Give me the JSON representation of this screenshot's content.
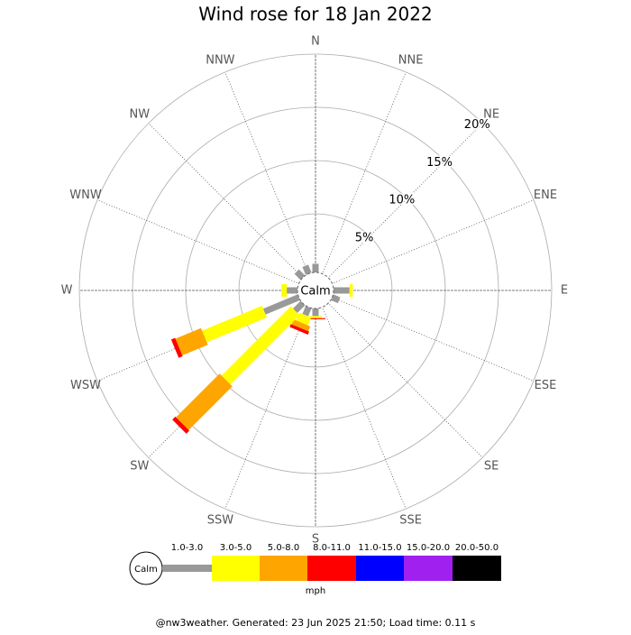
{
  "chart_data": {
    "type": "wind_rose",
    "title": "Wind rose for 18 Jan 2022",
    "categories": [
      "N",
      "NNE",
      "NE",
      "ENE",
      "E",
      "ESE",
      "SE",
      "SSE",
      "S",
      "SSW",
      "SW",
      "WSW",
      "W",
      "WNW",
      "NW",
      "NNW"
    ],
    "calm_label": "Calm",
    "rlim": [
      0,
      20
    ],
    "rticks": [
      {
        "value": 5,
        "label": "5%"
      },
      {
        "value": 10,
        "label": "10%"
      },
      {
        "value": 15,
        "label": "15%"
      },
      {
        "value": 20,
        "label": "20%"
      }
    ],
    "series": [
      {
        "name": "1.0-3.0",
        "color": "#999999",
        "values": [
          0.3,
          0,
          0,
          0,
          1.0,
          0.2,
          0,
          0,
          0.2,
          0.3,
          0.5,
          3.0,
          0.5,
          0,
          0.3,
          0.3
        ]
      },
      {
        "name": "3.0-5.0",
        "color": "#ffff00",
        "values": [
          0,
          0,
          0,
          0,
          0.3,
          0,
          0,
          0,
          0.2,
          0.8,
          9.2,
          6.1,
          0.5,
          0,
          0,
          0
        ]
      },
      {
        "name": "5.0-8.0",
        "color": "#ffa500",
        "values": [
          0,
          0,
          0,
          0,
          0,
          0,
          0,
          0,
          0,
          0.5,
          5.8,
          2.6,
          0,
          0,
          0,
          0
        ]
      },
      {
        "name": "8.0-11.0",
        "color": "#ff0000",
        "values": [
          0,
          0,
          0,
          0,
          0,
          0,
          0,
          0,
          0.1,
          0.3,
          0.4,
          0.4,
          0,
          0,
          0,
          0
        ]
      },
      {
        "name": "11.0-15.0",
        "color": "#0000ff",
        "values": [
          0,
          0,
          0,
          0,
          0,
          0,
          0,
          0,
          0,
          0,
          0,
          0,
          0,
          0,
          0,
          0
        ]
      },
      {
        "name": "15.0-20.0",
        "color": "#a020f0",
        "values": [
          0,
          0,
          0,
          0,
          0,
          0,
          0,
          0,
          0,
          0,
          0,
          0,
          0,
          0,
          0,
          0
        ]
      },
      {
        "name": "20.0-50.0",
        "color": "#000000",
        "values": [
          0,
          0,
          0,
          0,
          0,
          0,
          0,
          0,
          0,
          0,
          0,
          0,
          0,
          0,
          0,
          0
        ]
      }
    ],
    "unit": "mph",
    "footer": "@nw3weather. Generated: 23 Jun 2025 21:50; Load time: 0.11 s"
  }
}
